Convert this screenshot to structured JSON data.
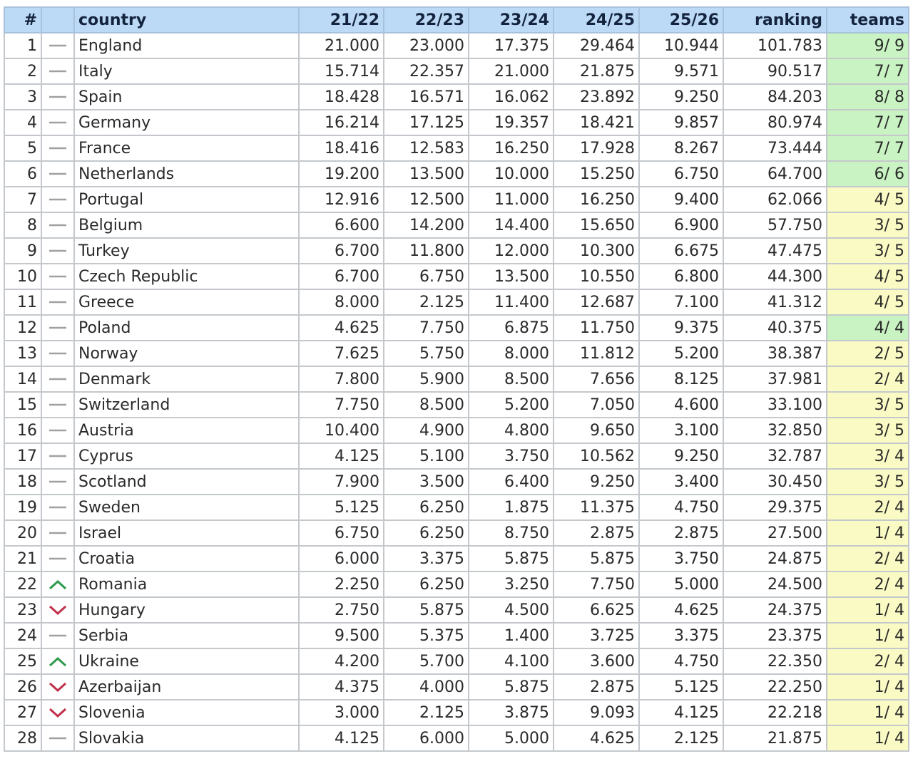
{
  "table": {
    "headers": {
      "rank": "#",
      "trend": "",
      "country": "country",
      "s1": "21/22",
      "s2": "22/23",
      "s3": "23/24",
      "s4": "24/25",
      "s5": "25/26",
      "ranking": "ranking",
      "teams": "teams"
    },
    "colors": {
      "header_bg": "#bcd9f5",
      "teams_complete": "#c9f3c2",
      "teams_partial": "#fafac4",
      "trend_up": "#2e9a4a",
      "trend_down": "#c0304a",
      "trend_same": "#a0a0a0"
    },
    "rows": [
      {
        "rank": "1",
        "trend": "same",
        "country": "England",
        "s1": "21.000",
        "s2": "23.000",
        "s3": "17.375",
        "s4": "29.464",
        "s5": "10.944",
        "ranking": "101.783",
        "teams": "9/ 9",
        "teams_status": "complete"
      },
      {
        "rank": "2",
        "trend": "same",
        "country": "Italy",
        "s1": "15.714",
        "s2": "22.357",
        "s3": "21.000",
        "s4": "21.875",
        "s5": "9.571",
        "ranking": "90.517",
        "teams": "7/ 7",
        "teams_status": "complete"
      },
      {
        "rank": "3",
        "trend": "same",
        "country": "Spain",
        "s1": "18.428",
        "s2": "16.571",
        "s3": "16.062",
        "s4": "23.892",
        "s5": "9.250",
        "ranking": "84.203",
        "teams": "8/ 8",
        "teams_status": "complete"
      },
      {
        "rank": "4",
        "trend": "same",
        "country": "Germany",
        "s1": "16.214",
        "s2": "17.125",
        "s3": "19.357",
        "s4": "18.421",
        "s5": "9.857",
        "ranking": "80.974",
        "teams": "7/ 7",
        "teams_status": "complete"
      },
      {
        "rank": "5",
        "trend": "same",
        "country": "France",
        "s1": "18.416",
        "s2": "12.583",
        "s3": "16.250",
        "s4": "17.928",
        "s5": "8.267",
        "ranking": "73.444",
        "teams": "7/ 7",
        "teams_status": "complete"
      },
      {
        "rank": "6",
        "trend": "same",
        "country": "Netherlands",
        "s1": "19.200",
        "s2": "13.500",
        "s3": "10.000",
        "s4": "15.250",
        "s5": "6.750",
        "ranking": "64.700",
        "teams": "6/ 6",
        "teams_status": "complete"
      },
      {
        "rank": "7",
        "trend": "same",
        "country": "Portugal",
        "s1": "12.916",
        "s2": "12.500",
        "s3": "11.000",
        "s4": "16.250",
        "s5": "9.400",
        "ranking": "62.066",
        "teams": "4/ 5",
        "teams_status": "partial"
      },
      {
        "rank": "8",
        "trend": "same",
        "country": "Belgium",
        "s1": "6.600",
        "s2": "14.200",
        "s3": "14.400",
        "s4": "15.650",
        "s5": "6.900",
        "ranking": "57.750",
        "teams": "3/ 5",
        "teams_status": "partial"
      },
      {
        "rank": "9",
        "trend": "same",
        "country": "Turkey",
        "s1": "6.700",
        "s2": "11.800",
        "s3": "12.000",
        "s4": "10.300",
        "s5": "6.675",
        "ranking": "47.475",
        "teams": "3/ 5",
        "teams_status": "partial"
      },
      {
        "rank": "10",
        "trend": "same",
        "country": "Czech Republic",
        "s1": "6.700",
        "s2": "6.750",
        "s3": "13.500",
        "s4": "10.550",
        "s5": "6.800",
        "ranking": "44.300",
        "teams": "4/ 5",
        "teams_status": "partial"
      },
      {
        "rank": "11",
        "trend": "same",
        "country": "Greece",
        "s1": "8.000",
        "s2": "2.125",
        "s3": "11.400",
        "s4": "12.687",
        "s5": "7.100",
        "ranking": "41.312",
        "teams": "4/ 5",
        "teams_status": "partial"
      },
      {
        "rank": "12",
        "trend": "same",
        "country": "Poland",
        "s1": "4.625",
        "s2": "7.750",
        "s3": "6.875",
        "s4": "11.750",
        "s5": "9.375",
        "ranking": "40.375",
        "teams": "4/ 4",
        "teams_status": "complete"
      },
      {
        "rank": "13",
        "trend": "same",
        "country": "Norway",
        "s1": "7.625",
        "s2": "5.750",
        "s3": "8.000",
        "s4": "11.812",
        "s5": "5.200",
        "ranking": "38.387",
        "teams": "2/ 5",
        "teams_status": "partial"
      },
      {
        "rank": "14",
        "trend": "same",
        "country": "Denmark",
        "s1": "7.800",
        "s2": "5.900",
        "s3": "8.500",
        "s4": "7.656",
        "s5": "8.125",
        "ranking": "37.981",
        "teams": "2/ 4",
        "teams_status": "partial"
      },
      {
        "rank": "15",
        "trend": "same",
        "country": "Switzerland",
        "s1": "7.750",
        "s2": "8.500",
        "s3": "5.200",
        "s4": "7.050",
        "s5": "4.600",
        "ranking": "33.100",
        "teams": "3/ 5",
        "teams_status": "partial"
      },
      {
        "rank": "16",
        "trend": "same",
        "country": "Austria",
        "s1": "10.400",
        "s2": "4.900",
        "s3": "4.800",
        "s4": "9.650",
        "s5": "3.100",
        "ranking": "32.850",
        "teams": "3/ 5",
        "teams_status": "partial"
      },
      {
        "rank": "17",
        "trend": "same",
        "country": "Cyprus",
        "s1": "4.125",
        "s2": "5.100",
        "s3": "3.750",
        "s4": "10.562",
        "s5": "9.250",
        "ranking": "32.787",
        "teams": "3/ 4",
        "teams_status": "partial"
      },
      {
        "rank": "18",
        "trend": "same",
        "country": "Scotland",
        "s1": "7.900",
        "s2": "3.500",
        "s3": "6.400",
        "s4": "9.250",
        "s5": "3.400",
        "ranking": "30.450",
        "teams": "3/ 5",
        "teams_status": "partial"
      },
      {
        "rank": "19",
        "trend": "same",
        "country": "Sweden",
        "s1": "5.125",
        "s2": "6.250",
        "s3": "1.875",
        "s4": "11.375",
        "s5": "4.750",
        "ranking": "29.375",
        "teams": "2/ 4",
        "teams_status": "partial"
      },
      {
        "rank": "20",
        "trend": "same",
        "country": "Israel",
        "s1": "6.750",
        "s2": "6.250",
        "s3": "8.750",
        "s4": "2.875",
        "s5": "2.875",
        "ranking": "27.500",
        "teams": "1/ 4",
        "teams_status": "partial"
      },
      {
        "rank": "21",
        "trend": "same",
        "country": "Croatia",
        "s1": "6.000",
        "s2": "3.375",
        "s3": "5.875",
        "s4": "5.875",
        "s5": "3.750",
        "ranking": "24.875",
        "teams": "2/ 4",
        "teams_status": "partial"
      },
      {
        "rank": "22",
        "trend": "up",
        "country": "Romania",
        "s1": "2.250",
        "s2": "6.250",
        "s3": "3.250",
        "s4": "7.750",
        "s5": "5.000",
        "ranking": "24.500",
        "teams": "2/ 4",
        "teams_status": "partial"
      },
      {
        "rank": "23",
        "trend": "down",
        "country": "Hungary",
        "s1": "2.750",
        "s2": "5.875",
        "s3": "4.500",
        "s4": "6.625",
        "s5": "4.625",
        "ranking": "24.375",
        "teams": "1/ 4",
        "teams_status": "partial"
      },
      {
        "rank": "24",
        "trend": "same",
        "country": "Serbia",
        "s1": "9.500",
        "s2": "5.375",
        "s3": "1.400",
        "s4": "3.725",
        "s5": "3.375",
        "ranking": "23.375",
        "teams": "1/ 4",
        "teams_status": "partial"
      },
      {
        "rank": "25",
        "trend": "up",
        "country": "Ukraine",
        "s1": "4.200",
        "s2": "5.700",
        "s3": "4.100",
        "s4": "3.600",
        "s5": "4.750",
        "ranking": "22.350",
        "teams": "2/ 4",
        "teams_status": "partial"
      },
      {
        "rank": "26",
        "trend": "down",
        "country": "Azerbaijan",
        "s1": "4.375",
        "s2": "4.000",
        "s3": "5.875",
        "s4": "2.875",
        "s5": "5.125",
        "ranking": "22.250",
        "teams": "1/ 4",
        "teams_status": "partial"
      },
      {
        "rank": "27",
        "trend": "down",
        "country": "Slovenia",
        "s1": "3.000",
        "s2": "2.125",
        "s3": "3.875",
        "s4": "9.093",
        "s5": "4.125",
        "ranking": "22.218",
        "teams": "1/ 4",
        "teams_status": "partial"
      },
      {
        "rank": "28",
        "trend": "same",
        "country": "Slovakia",
        "s1": "4.125",
        "s2": "6.000",
        "s3": "5.000",
        "s4": "4.625",
        "s5": "2.125",
        "ranking": "21.875",
        "teams": "1/ 4",
        "teams_status": "partial"
      }
    ]
  }
}
